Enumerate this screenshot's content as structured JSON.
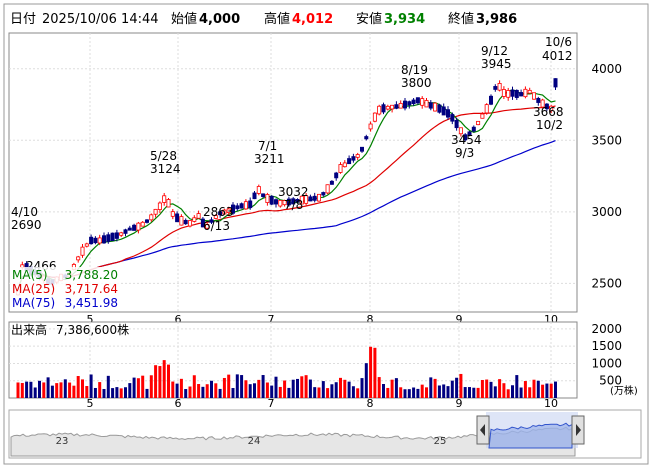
{
  "header": {
    "date_label": "日付",
    "datetime": "2025/10/06 14:44",
    "open_label": "始値",
    "open": "4,000",
    "high_label": "高値",
    "high": "4,012",
    "low_label": "安値",
    "low": "3,934",
    "close_label": "終値",
    "close": "3,986"
  },
  "legend": {
    "ma5_label": "MA(5)",
    "ma5_value": "3,788.20",
    "ma25_label": "MA(25)",
    "ma25_value": "3,717.64",
    "ma75_label": "MA(75)",
    "ma75_value": "3,451.98"
  },
  "volume_panel": {
    "label": "出来高",
    "value": "7,386,600株",
    "unit": "(万株)"
  },
  "colors": {
    "up": "#ff0000",
    "down": "#000080",
    "ma5": "#008000",
    "ma25": "#e00000",
    "ma75": "#0000cc",
    "volume_up": "#ff0000",
    "volume_down": "#000080"
  },
  "chart_data": [
    {
      "type": "candlestick",
      "ylim": [
        2300,
        4250
      ],
      "yticks": [
        "4000",
        "3500",
        "3000",
        "2500"
      ],
      "x_months": [
        "5",
        "6",
        "7",
        "8",
        "9",
        "10"
      ],
      "annotations": [
        {
          "date": "4/10",
          "value": "2690"
        },
        {
          "date": "",
          "value": "2466"
        },
        {
          "date": "5/28",
          "value": "3124"
        },
        {
          "date": "6/13",
          "value": "2863"
        },
        {
          "date": "7/1",
          "value": "3211"
        },
        {
          "date": "7/8",
          "value": "3032"
        },
        {
          "date": "8/19",
          "value": "3800"
        },
        {
          "date": "9/3",
          "value": "3454"
        },
        {
          "date": "9/12",
          "value": "3945"
        },
        {
          "date": "10/2",
          "value": "3668"
        },
        {
          "date": "10/6",
          "value": "4012"
        }
      ],
      "series": [
        {
          "name": "MA(5)",
          "last": 3788.2
        },
        {
          "name": "MA(25)",
          "last": 3717.64
        },
        {
          "name": "MA(75)",
          "last": 3451.98
        }
      ]
    },
    {
      "type": "bar",
      "ylim": [
        0,
        2200
      ],
      "yticks": [
        "2000",
        "1500",
        "1000",
        "500"
      ],
      "x_months": [
        "5",
        "6",
        "7",
        "8",
        "9",
        "10"
      ]
    }
  ],
  "navigator": {
    "months": [
      "23",
      "24",
      "25"
    ]
  }
}
